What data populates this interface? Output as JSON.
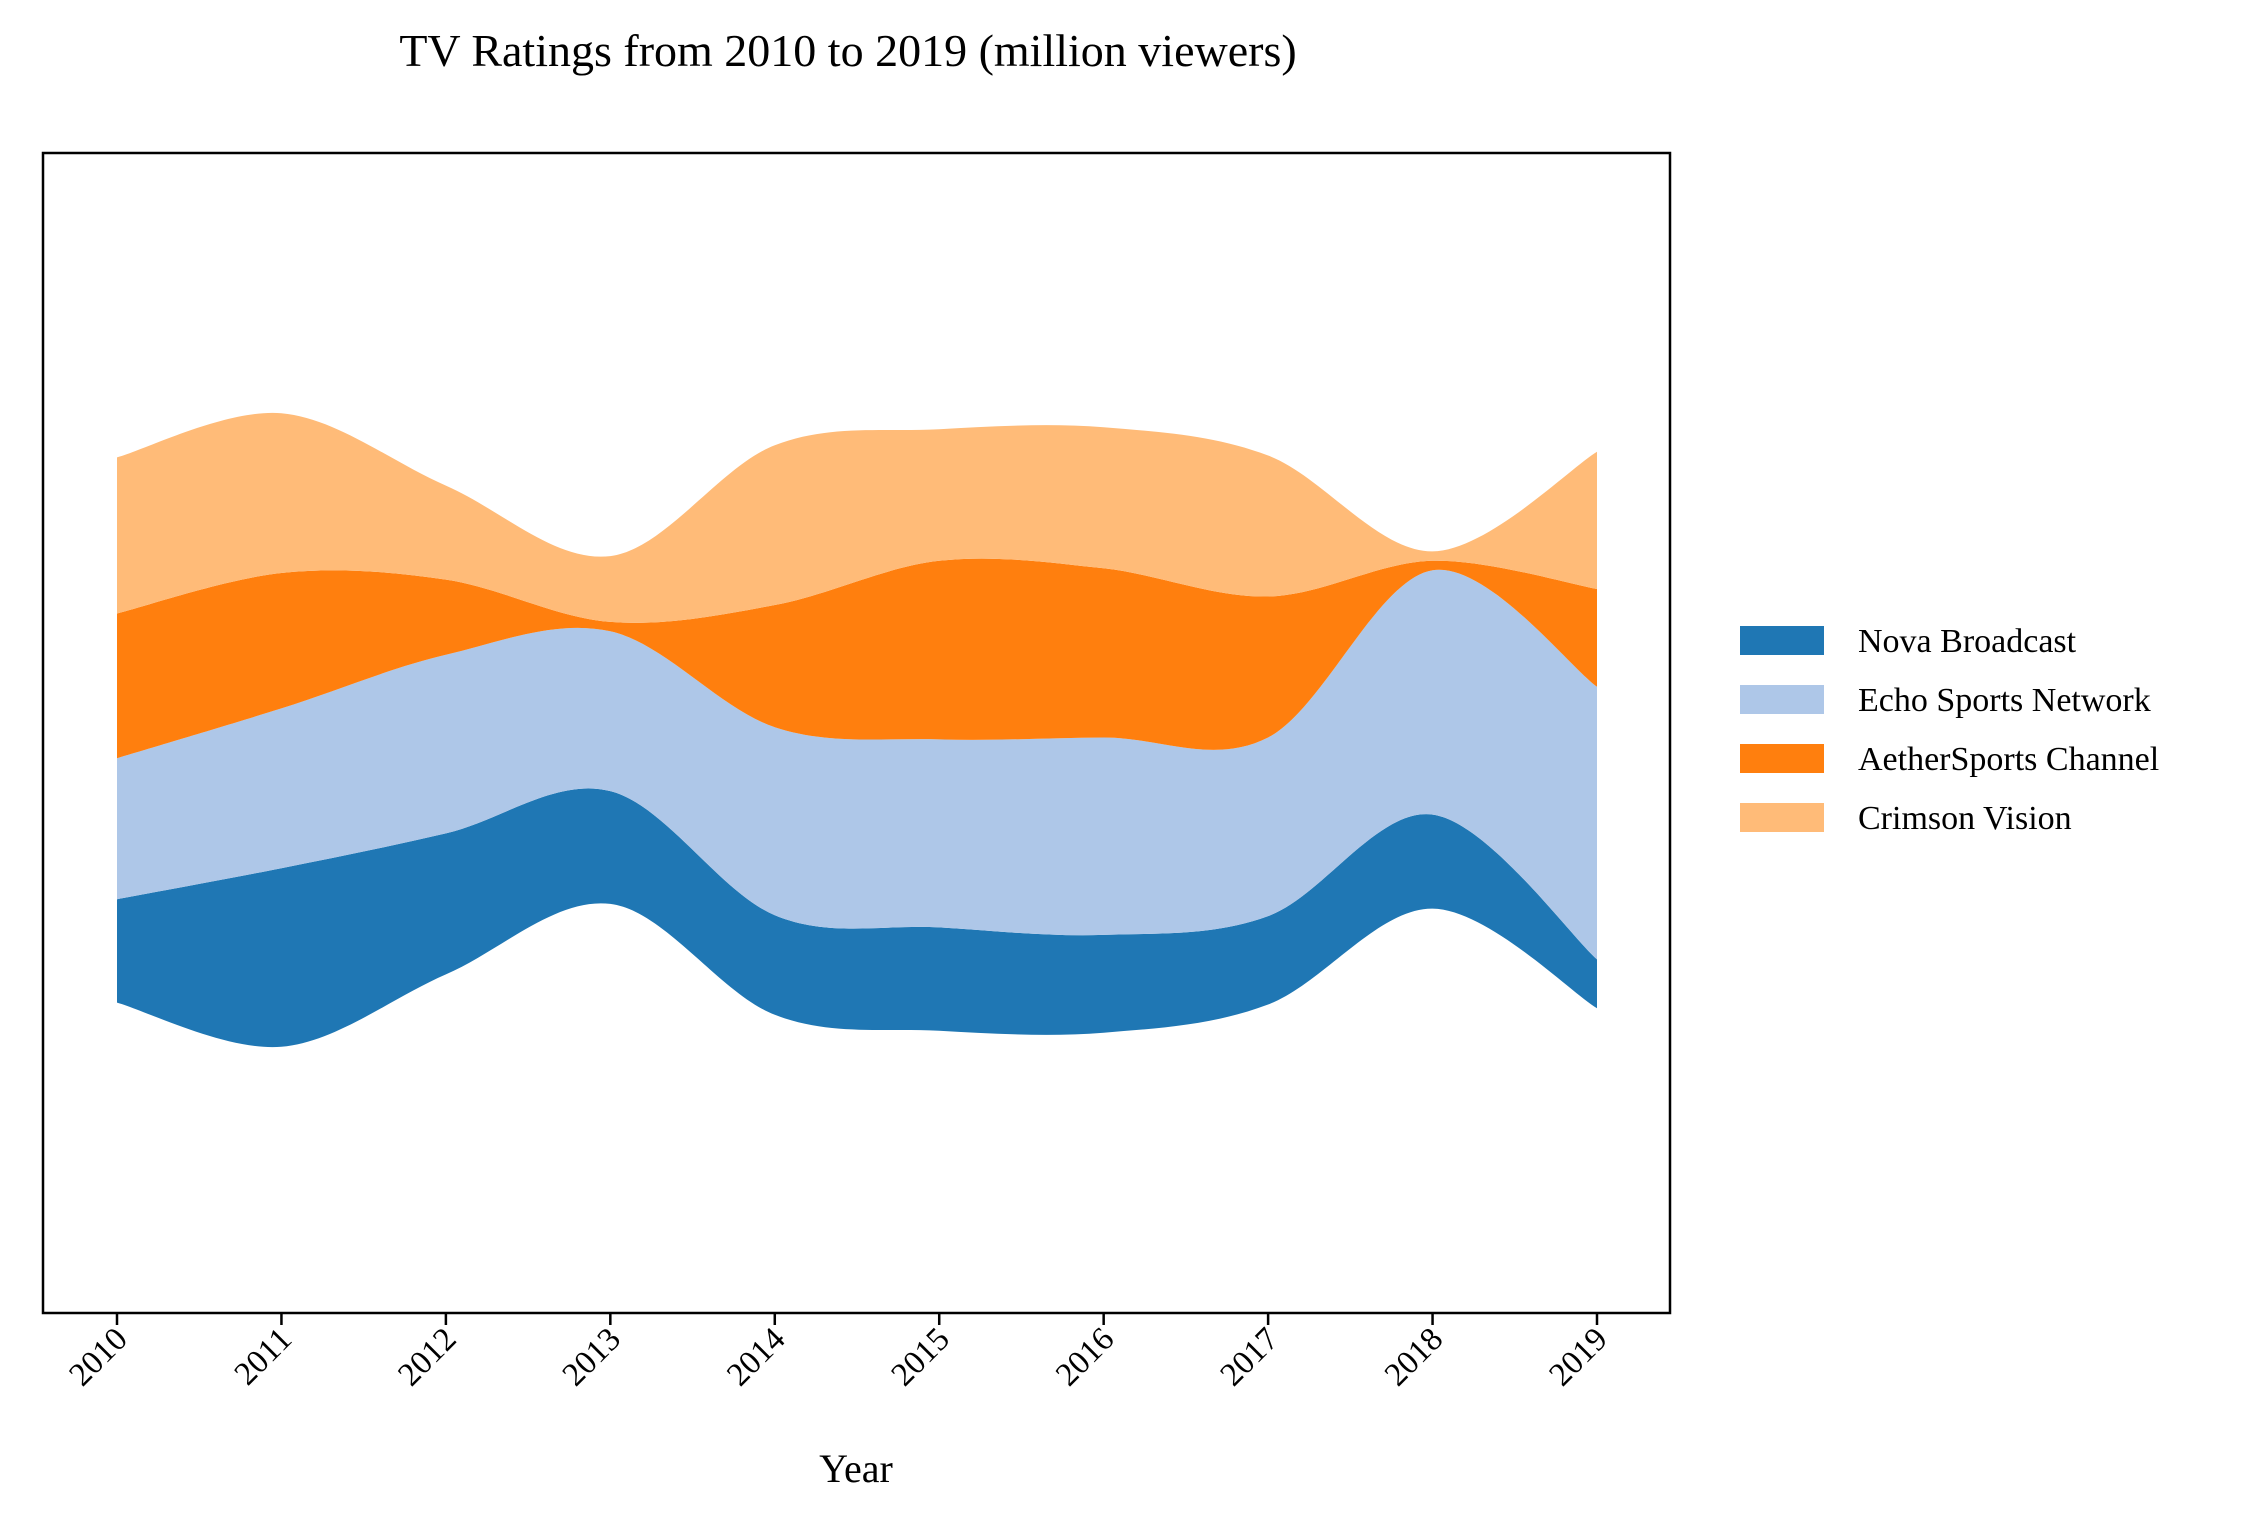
{
  "chart_data": {
    "type": "area",
    "subtype": "streamgraph",
    "title": "TV Ratings from 2010 to 2019 (million viewers)",
    "xlabel": "Year",
    "ylabel": "",
    "categories": [
      "2010",
      "2011",
      "2012",
      "2013",
      "2014",
      "2015",
      "2016",
      "2017",
      "2018",
      "2019"
    ],
    "series": [
      {
        "name": "Nova Broadcast",
        "color": "#1f77b4",
        "values": [
          5.5,
          9.5,
          7.5,
          6.0,
          5.3,
          5.5,
          5.2,
          4.7,
          5.0,
          2.6
        ]
      },
      {
        "name": "Echo Sports Network",
        "color": "#aec7e8",
        "values": [
          7.5,
          8.5,
          9.5,
          8.5,
          10.0,
          10.0,
          10.5,
          9.5,
          13.0,
          14.5
        ]
      },
      {
        "name": "AetherSports Channel",
        "color": "#ff7f0e",
        "values": [
          7.7,
          7.2,
          4.0,
          0.5,
          6.5,
          9.5,
          9.0,
          7.5,
          0.5,
          5.2
        ]
      },
      {
        "name": "Crimson Vision",
        "color": "#ffbb78",
        "values": [
          8.3,
          8.5,
          5.0,
          3.5,
          8.5,
          7.0,
          7.5,
          7.5,
          0.5,
          7.3
        ]
      }
    ],
    "baseline": "symmetric",
    "legend": {
      "position": "right"
    },
    "grid": false,
    "yaxis_visible": false
  }
}
